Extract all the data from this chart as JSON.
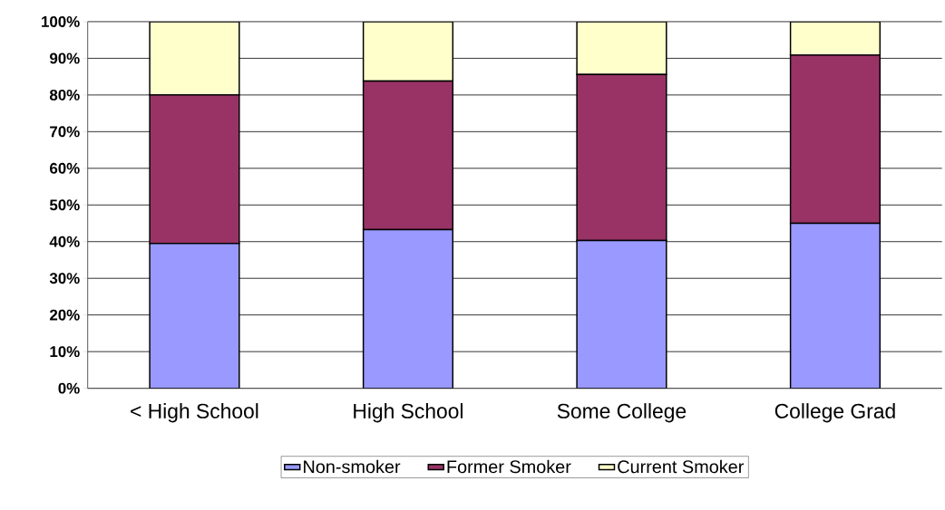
{
  "chart_data": {
    "type": "bar",
    "stacked": true,
    "categories": [
      "< High School",
      "High School",
      "Some College",
      "College Grad"
    ],
    "series": [
      {
        "name": "Non-smoker",
        "color": "#9999ff",
        "values": [
          39.5,
          43.3,
          40.3,
          45.0
        ]
      },
      {
        "name": "Former Smoker",
        "color": "#993366",
        "values": [
          40.5,
          40.5,
          45.3,
          45.9
        ]
      },
      {
        "name": "Current Smoker",
        "color": "#ffffcc",
        "values": [
          20.0,
          16.2,
          14.4,
          9.1
        ]
      }
    ],
    "ylim": [
      0,
      100
    ],
    "yticks": [
      {
        "value": 0,
        "label": "0%"
      },
      {
        "value": 10,
        "label": "10%"
      },
      {
        "value": 20,
        "label": "20%"
      },
      {
        "value": 30,
        "label": "30%"
      },
      {
        "value": 40,
        "label": "40%"
      },
      {
        "value": 50,
        "label": "50%"
      },
      {
        "value": 60,
        "label": "60%"
      },
      {
        "value": 70,
        "label": "70%"
      },
      {
        "value": 80,
        "label": "80%"
      },
      {
        "value": 90,
        "label": "90%"
      },
      {
        "value": 100,
        "label": "100%"
      }
    ],
    "grid": "y",
    "legend": "bottom"
  }
}
